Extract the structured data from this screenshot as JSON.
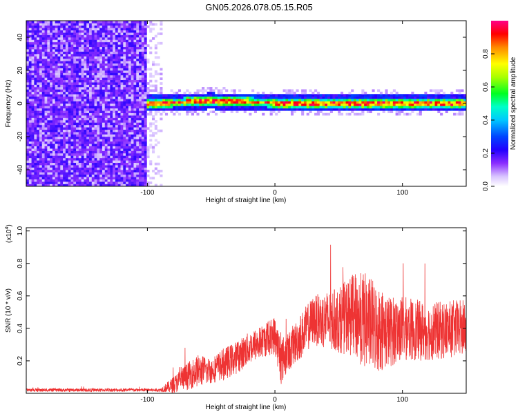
{
  "figure": {
    "title": "GN05.2026.078.05.15.R05"
  },
  "colors": {
    "line": "#ee3333",
    "axis": "#000000",
    "background": "#ffffff",
    "colormap": [
      "#ffffff",
      "#e9dcff",
      "#c8a6ff",
      "#8a2cff",
      "#4a00ff",
      "#0033ff",
      "#00b4ff",
      "#00ffcc",
      "#00ff00",
      "#b4ff00",
      "#ffff00",
      "#ff9900",
      "#ff0000",
      "#ff0080"
    ]
  },
  "chart_data": [
    {
      "type": "heatmap",
      "title": "GN05.2026.078.05.15.R05",
      "xlabel": "Height of straight line (km)",
      "ylabel": "Frequency (Hz)",
      "xlim": [
        -195,
        150
      ],
      "ylim": [
        -50,
        50
      ],
      "xticks": [
        -100,
        0,
        100
      ],
      "yticks": [
        -40,
        -20,
        0,
        20,
        40
      ],
      "xtick_labels": [
        "-100",
        "0",
        "100"
      ],
      "ytick_labels": [
        "-40",
        "-20",
        "0",
        "20",
        "40"
      ],
      "colorbar": {
        "label": "Normalized spectral amplitude",
        "range": [
          0,
          1
        ],
        "ticks": [
          0.0,
          0.2,
          0.4,
          0.6,
          0.8
        ],
        "tick_labels": [
          "0.0",
          "0.2",
          "0.4",
          "0.6",
          "0.8"
        ]
      },
      "noise_region_x": [
        -195,
        -100
      ],
      "signal_band": {
        "x_start": -100,
        "x_end": 150,
        "center_frequency": [
          {
            "x": -100,
            "y": 0
          },
          {
            "x": -50,
            "y": 1.5
          },
          {
            "x": 0,
            "y": 0.5
          },
          {
            "x": 50,
            "y": 0.5
          },
          {
            "x": 100,
            "y": 0.5
          },
          {
            "x": 150,
            "y": 0.5
          }
        ],
        "half_width_hz": 5,
        "peak_amplitude": 0.95
      }
    },
    {
      "type": "line",
      "xlabel": "Height of straight line (km)",
      "ylabel": "SNR (10 * v/v)",
      "multiplier_label": "(x10",
      "multiplier_exponent": "4",
      "xlim": [
        -195,
        150
      ],
      "ylim": [
        0,
        1.02
      ],
      "xticks": [
        -100,
        0,
        100
      ],
      "yticks": [
        0.2,
        0.4,
        0.6,
        0.8,
        1.0
      ],
      "xtick_labels": [
        "-100",
        "0",
        "100"
      ],
      "ytick_labels": [
        "0.2",
        "0.4",
        "0.6",
        "0.8",
        "1.0"
      ],
      "series": [
        {
          "name": "SNR",
          "envelope": [
            {
              "x": -195,
              "mean": 0.02,
              "spread": 0.01
            },
            {
              "x": -90,
              "mean": 0.02,
              "spread": 0.01
            },
            {
              "x": -80,
              "mean": 0.05,
              "spread": 0.05
            },
            {
              "x": -70,
              "mean": 0.1,
              "spread": 0.08
            },
            {
              "x": -60,
              "mean": 0.14,
              "spread": 0.1
            },
            {
              "x": -50,
              "mean": 0.14,
              "spread": 0.08
            },
            {
              "x": -40,
              "mean": 0.18,
              "spread": 0.1
            },
            {
              "x": -30,
              "mean": 0.22,
              "spread": 0.1
            },
            {
              "x": -20,
              "mean": 0.28,
              "spread": 0.1
            },
            {
              "x": -10,
              "mean": 0.32,
              "spread": 0.1
            },
            {
              "x": 0,
              "mean": 0.36,
              "spread": 0.12
            },
            {
              "x": 5,
              "mean": 0.2,
              "spread": 0.15
            },
            {
              "x": 10,
              "mean": 0.25,
              "spread": 0.12
            },
            {
              "x": 20,
              "mean": 0.35,
              "spread": 0.14
            },
            {
              "x": 30,
              "mean": 0.45,
              "spread": 0.15
            },
            {
              "x": 40,
              "mean": 0.45,
              "spread": 0.18
            },
            {
              "x": 50,
              "mean": 0.45,
              "spread": 0.2
            },
            {
              "x": 60,
              "mean": 0.48,
              "spread": 0.25
            },
            {
              "x": 70,
              "mean": 0.45,
              "spread": 0.3
            },
            {
              "x": 80,
              "mean": 0.4,
              "spread": 0.28
            },
            {
              "x": 90,
              "mean": 0.38,
              "spread": 0.22
            },
            {
              "x": 100,
              "mean": 0.4,
              "spread": 0.2
            },
            {
              "x": 120,
              "mean": 0.38,
              "spread": 0.18
            },
            {
              "x": 150,
              "mean": 0.4,
              "spread": 0.18
            }
          ]
        }
      ]
    }
  ]
}
